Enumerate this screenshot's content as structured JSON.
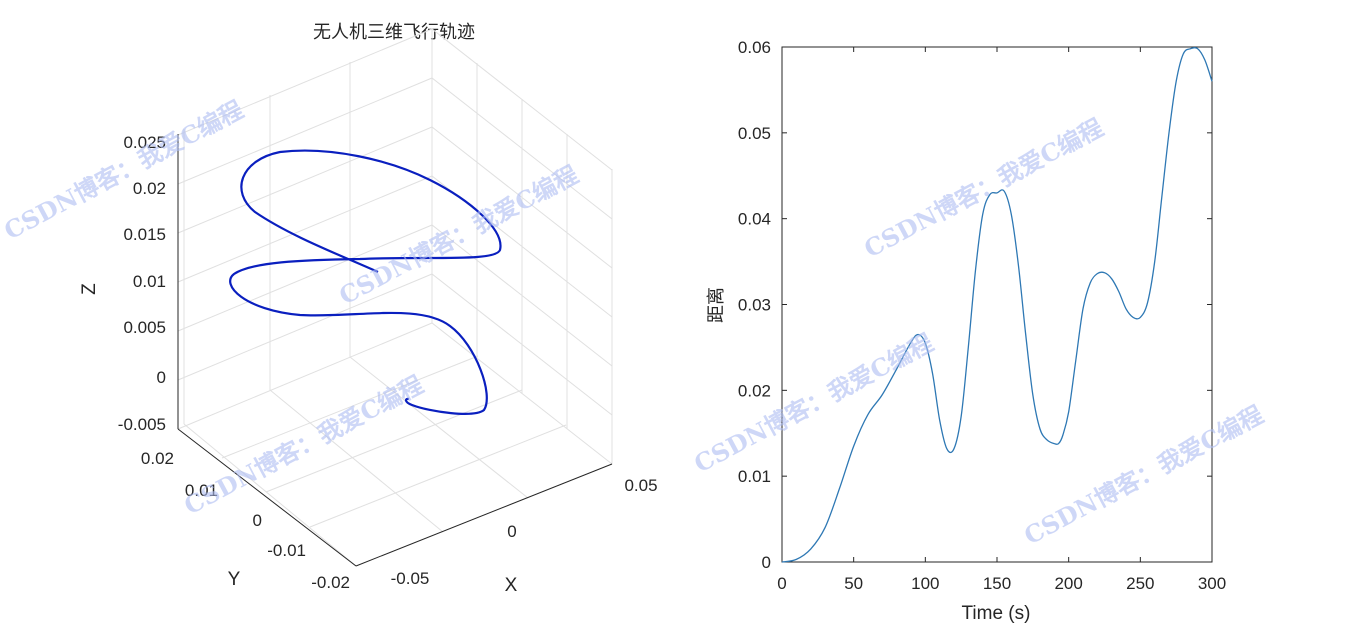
{
  "chart_data": [
    {
      "type": "line3d",
      "title": "无人机三维飞行轨迹",
      "xlabel": "X",
      "ylabel": "Y",
      "zlabel": "Z",
      "xlim": [
        -0.06,
        0.06
      ],
      "ylim": [
        -0.02,
        0.025
      ],
      "zlim": [
        -0.005,
        0.025
      ],
      "xticks": [
        "-0.05",
        "0",
        "0.05"
      ],
      "yticks": [
        "-0.02",
        "-0.01",
        "0",
        "0.01",
        "0.02"
      ],
      "zticks": [
        "-0.005",
        "0",
        "0.005",
        "0.01",
        "0.015",
        "0.02",
        "0.025"
      ],
      "grid": true,
      "line_color": "#0a1fbf"
    },
    {
      "type": "line",
      "title": "",
      "xlabel": "Time (s)",
      "ylabel": "距离",
      "xlim": [
        0,
        300
      ],
      "ylim": [
        0,
        0.06
      ],
      "xticks": [
        "0",
        "50",
        "100",
        "150",
        "200",
        "250",
        "300"
      ],
      "yticks": [
        "0",
        "0.01",
        "0.02",
        "0.03",
        "0.04",
        "0.05",
        "0.06"
      ],
      "line_color": "#2e78b4",
      "series": [
        {
          "x": [
            0,
            10,
            20,
            30,
            40,
            50,
            60,
            70,
            80,
            90,
            95,
            100,
            105,
            110,
            115,
            120,
            125,
            130,
            135,
            140,
            145,
            150,
            155,
            160,
            165,
            170,
            175,
            180,
            185,
            190,
            193,
            196,
            200,
            205,
            210,
            215,
            220,
            225,
            230,
            235,
            240,
            245,
            250,
            255,
            260,
            265,
            270,
            275,
            280,
            285,
            290,
            295,
            300
          ],
          "y": [
            0,
            0.0003,
            0.0015,
            0.004,
            0.0085,
            0.0135,
            0.0172,
            0.0195,
            0.0225,
            0.0256,
            0.0265,
            0.0255,
            0.022,
            0.0165,
            0.0132,
            0.0132,
            0.017,
            0.025,
            0.034,
            0.0405,
            0.0428,
            0.043,
            0.0432,
            0.0405,
            0.0345,
            0.0265,
            0.0195,
            0.0155,
            0.0142,
            0.0138,
            0.0138,
            0.0148,
            0.0175,
            0.0235,
            0.0295,
            0.0325,
            0.0336,
            0.0337,
            0.033,
            0.0315,
            0.0295,
            0.0285,
            0.0285,
            0.0302,
            0.035,
            0.0425,
            0.05,
            0.056,
            0.0592,
            0.0598,
            0.0598,
            0.0585,
            0.056
          ]
        }
      ]
    }
  ],
  "watermark": "CSDN博客：我爱C编程"
}
